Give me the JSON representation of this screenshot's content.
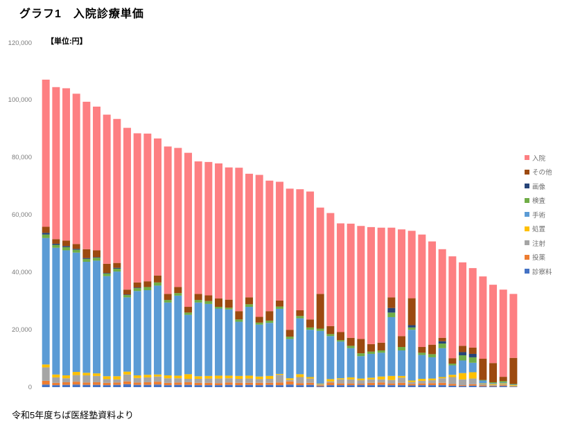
{
  "page": {
    "title": "グラフ1　入院診療単価",
    "unit_label": "【単位:円】",
    "footer": "令和5年度ちば医経塾資料より"
  },
  "legend": {
    "position": "right",
    "items": [
      {
        "label": "入院",
        "color": "#FD7F82"
      },
      {
        "label": "その他",
        "color": "#9C4A10"
      },
      {
        "label": "画像",
        "color": "#264478"
      },
      {
        "label": "検査",
        "color": "#70AD47"
      },
      {
        "label": "手術",
        "color": "#5B9BD5"
      },
      {
        "label": "処置",
        "color": "#FFC000"
      },
      {
        "label": "注射",
        "color": "#A5A5A5"
      },
      {
        "label": "投薬",
        "color": "#ED7D31"
      },
      {
        "label": "診察料",
        "color": "#4472C4"
      }
    ]
  },
  "chart_data": {
    "type": "bar",
    "stacked": true,
    "title": "グラフ1　入院診療単価",
    "xlabel": "",
    "ylabel": "円",
    "ylim": [
      0,
      120000
    ],
    "ytick_step": 20000,
    "yticks": [
      "120,000",
      "100,000",
      "80,000",
      "60,000",
      "40,000",
      "20,000",
      "0"
    ],
    "grid": false,
    "legend_position": "right",
    "n_bars": 47,
    "categories_note": "47 unlabeled hospitals sorted by descending total inpatient unit price (yen)",
    "series": [
      {
        "name": "診察料",
        "color": "#4472C4",
        "values": [
          900,
          700,
          800,
          900,
          800,
          800,
          700,
          800,
          1000,
          800,
          800,
          900,
          700,
          800,
          800,
          700,
          700,
          700,
          800,
          700,
          800,
          700,
          800,
          700,
          900,
          700,
          800,
          300,
          700,
          700,
          700,
          800,
          700,
          800,
          700,
          700,
          600,
          700,
          700,
          700,
          500,
          400,
          500,
          300,
          300,
          400,
          200
        ]
      },
      {
        "name": "投薬",
        "color": "#ED7D31",
        "values": [
          1300,
          800,
          900,
          1000,
          800,
          900,
          800,
          800,
          1000,
          800,
          900,
          1000,
          800,
          800,
          900,
          800,
          800,
          700,
          800,
          800,
          700,
          800,
          700,
          900,
          1100,
          700,
          700,
          300,
          900,
          600,
          600,
          400,
          800,
          800,
          600,
          800,
          500,
          600,
          700,
          800,
          600,
          300,
          500,
          300,
          200,
          300,
          100
        ]
      },
      {
        "name": "注射",
        "color": "#A5A5A5",
        "values": [
          4700,
          1900,
          1400,
          2300,
          2500,
          2200,
          1300,
          1100,
          2400,
          1600,
          1700,
          1800,
          1600,
          1500,
          1200,
          1400,
          1500,
          1600,
          1500,
          1400,
          1500,
          1300,
          1400,
          2700,
          500,
          2100,
          1500,
          400,
          400,
          1400,
          1400,
          1200,
          1200,
          1100,
          1200,
          1800,
          700,
          900,
          1000,
          1600,
          2400,
          2000,
          2000,
          500,
          300,
          300,
          100
        ]
      },
      {
        "name": "処置",
        "color": "#FFC000",
        "values": [
          1000,
          1000,
          1000,
          1100,
          900,
          900,
          1000,
          1100,
          1000,
          900,
          900,
          700,
          1000,
          900,
          1600,
          900,
          900,
          1000,
          900,
          1000,
          1000,
          900,
          1000,
          300,
          600,
          1000,
          500,
          200,
          800,
          400,
          700,
          600,
          600,
          1000,
          1400,
          600,
          500,
          700,
          600,
          400,
          800,
          2200,
          2200,
          200,
          300,
          300,
          300
        ]
      },
      {
        "name": "手術",
        "color": "#5B9BD5",
        "values": [
          44100,
          44200,
          43600,
          41600,
          38700,
          39300,
          34900,
          36500,
          25900,
          29400,
          29500,
          31000,
          25400,
          27900,
          20700,
          25700,
          25100,
          23400,
          23100,
          18900,
          24000,
          18100,
          18500,
          22700,
          13700,
          19500,
          16500,
          18400,
          15000,
          12800,
          10200,
          7800,
          8300,
          8300,
          20500,
          8900,
          17700,
          8300,
          7400,
          10100,
          3300,
          4400,
          3300,
          1000,
          300,
          300,
          200
        ]
      },
      {
        "name": "検査",
        "color": "#70AD47",
        "values": [
          1200,
          1000,
          1100,
          1000,
          1000,
          1000,
          900,
          1000,
          800,
          1000,
          1100,
          1100,
          900,
          900,
          800,
          900,
          1000,
          600,
          600,
          800,
          900,
          700,
          800,
          800,
          800,
          800,
          800,
          800,
          700,
          500,
          800,
          1000,
          800,
          800,
          1600,
          1200,
          800,
          800,
          1100,
          1600,
          600,
          1800,
          1900,
          200,
          300,
          500,
          200
        ]
      },
      {
        "name": "画像",
        "color": "#264478",
        "values": [
          600,
          400,
          400,
          300,
          300,
          200,
          200,
          300,
          200,
          200,
          0,
          0,
          0,
          0,
          0,
          0,
          0,
          0,
          0,
          0,
          0,
          0,
          0,
          0,
          0,
          0,
          0,
          0,
          0,
          0,
          0,
          0,
          0,
          0,
          1600,
          0,
          800,
          0,
          0,
          800,
          0,
          1100,
          1200,
          0,
          0,
          0,
          0
        ]
      },
      {
        "name": "その他",
        "color": "#9C4A10",
        "values": [
          2100,
          1600,
          1900,
          1700,
          3100,
          2400,
          3200,
          1700,
          1700,
          1800,
          2000,
          2400,
          2100,
          2100,
          2000,
          2100,
          2000,
          2900,
          2800,
          2900,
          2400,
          2000,
          3300,
          2100,
          2400,
          2000,
          2800,
          12100,
          2800,
          2800,
          2800,
          5000,
          2600,
          2700,
          3700,
          3800,
          9400,
          2000,
          3300,
          1200,
          1900,
          2200,
          2200,
          7400,
          6700,
          1500,
          9100
        ]
      },
      {
        "name": "入院",
        "color": "#FD7F82",
        "values": [
          51300,
          53000,
          53100,
          52400,
          51400,
          50100,
          52000,
          50200,
          56400,
          52000,
          51500,
          47800,
          51400,
          48500,
          53700,
          46200,
          46500,
          47100,
          46100,
          50000,
          43100,
          49500,
          45500,
          41400,
          49200,
          42200,
          44600,
          30100,
          39400,
          37900,
          39800,
          39400,
          40800,
          40100,
          24300,
          37200,
          23500,
          39200,
          36000,
          30900,
          35500,
          29100,
          27700,
          28700,
          27300,
          30400,
          22300
        ]
      }
    ],
    "totals": [
      107200,
      104600,
      104200,
      102300,
      99500,
      97800,
      95000,
      93500,
      90400,
      88500,
      88400,
      86700,
      83900,
      83400,
      81700,
      78700,
      78500,
      78000,
      76600,
      76500,
      74400,
      74000,
      72000,
      71600,
      69200,
      69000,
      68200,
      62600,
      60700,
      57100,
      57000,
      56200,
      55800,
      55600,
      55600,
      55000,
      54500,
      53200,
      50800,
      48100,
      45600,
      43500,
      41500,
      38600,
      35700,
      34000,
      32500
    ]
  }
}
